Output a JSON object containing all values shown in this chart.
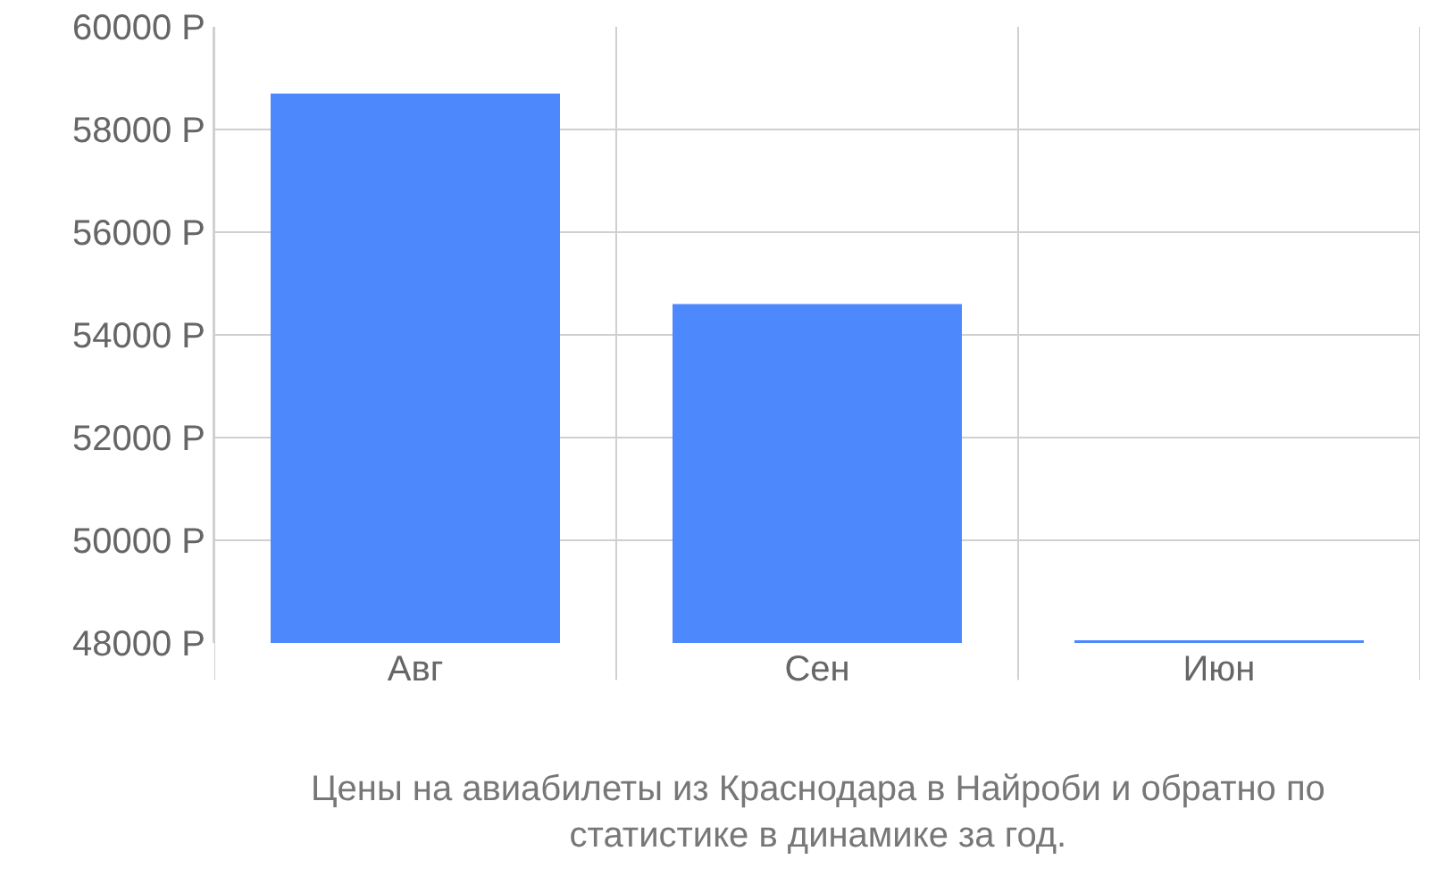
{
  "chart_data": {
    "type": "bar",
    "categories": [
      "Авг",
      "Сен",
      "Июн"
    ],
    "values": [
      58700,
      54600,
      48050
    ],
    "color": "#4d88fd",
    "ylim": [
      48000,
      60000
    ],
    "yticks": [
      {
        "value": 48000,
        "label": "48000 Р"
      },
      {
        "value": 50000,
        "label": "50000 Р"
      },
      {
        "value": 52000,
        "label": "52000 Р"
      },
      {
        "value": 54000,
        "label": "54000 Р"
      },
      {
        "value": 56000,
        "label": "56000 Р"
      },
      {
        "value": 58000,
        "label": "58000 Р"
      },
      {
        "value": 60000,
        "label": "60000 Р"
      }
    ],
    "grid": true,
    "annotations": [
      "Цены на авиабилеты из Краснодара в Найроби и обратно по статистике в динамике за год."
    ]
  }
}
